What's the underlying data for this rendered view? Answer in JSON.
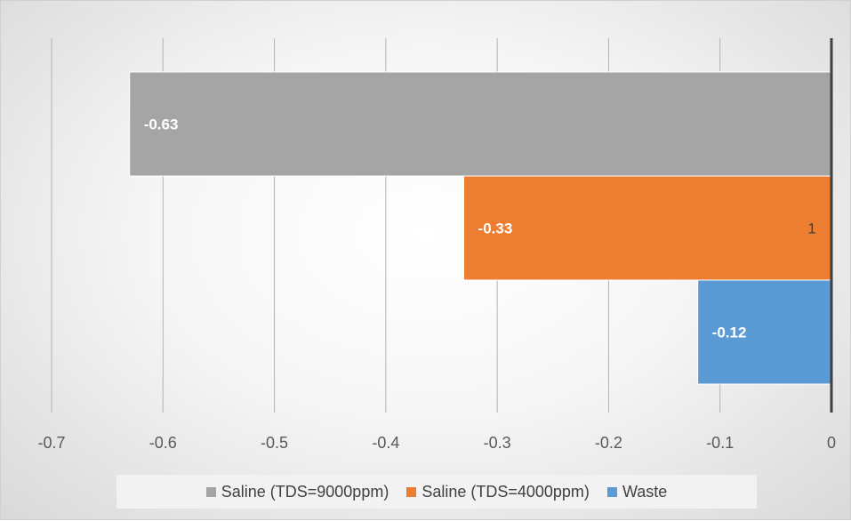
{
  "chart_data": {
    "type": "bar",
    "orientation": "horizontal",
    "categories": [
      "1"
    ],
    "series": [
      {
        "name": "Saline (TDS=9000ppm)",
        "values": [
          -0.63
        ],
        "color": "#a5a5a5",
        "label": "-0.63"
      },
      {
        "name": "Saline (TDS=4000ppm)",
        "values": [
          -0.33
        ],
        "color": "#ed7d31",
        "label": "-0.33"
      },
      {
        "name": "Waste",
        "values": [
          -0.12
        ],
        "color": "#5b9bd5",
        "label": "-0.12"
      }
    ],
    "xlim": [
      -0.7,
      0
    ],
    "xticks": [
      "-0.7",
      "-0.6",
      "-0.5",
      "-0.4",
      "-0.3",
      "-0.2",
      "-0.1",
      "0"
    ],
    "grid": true,
    "legend_position": "bottom",
    "title": "",
    "xlabel": "",
    "ylabel": ""
  },
  "legend": {
    "items": [
      {
        "label": "Saline (TDS=9000ppm)",
        "color": "#a5a5a5"
      },
      {
        "label": "Saline (TDS=4000ppm)",
        "color": "#ed7d31"
      },
      {
        "label": "Waste",
        "color": "#5b9bd5"
      }
    ]
  }
}
